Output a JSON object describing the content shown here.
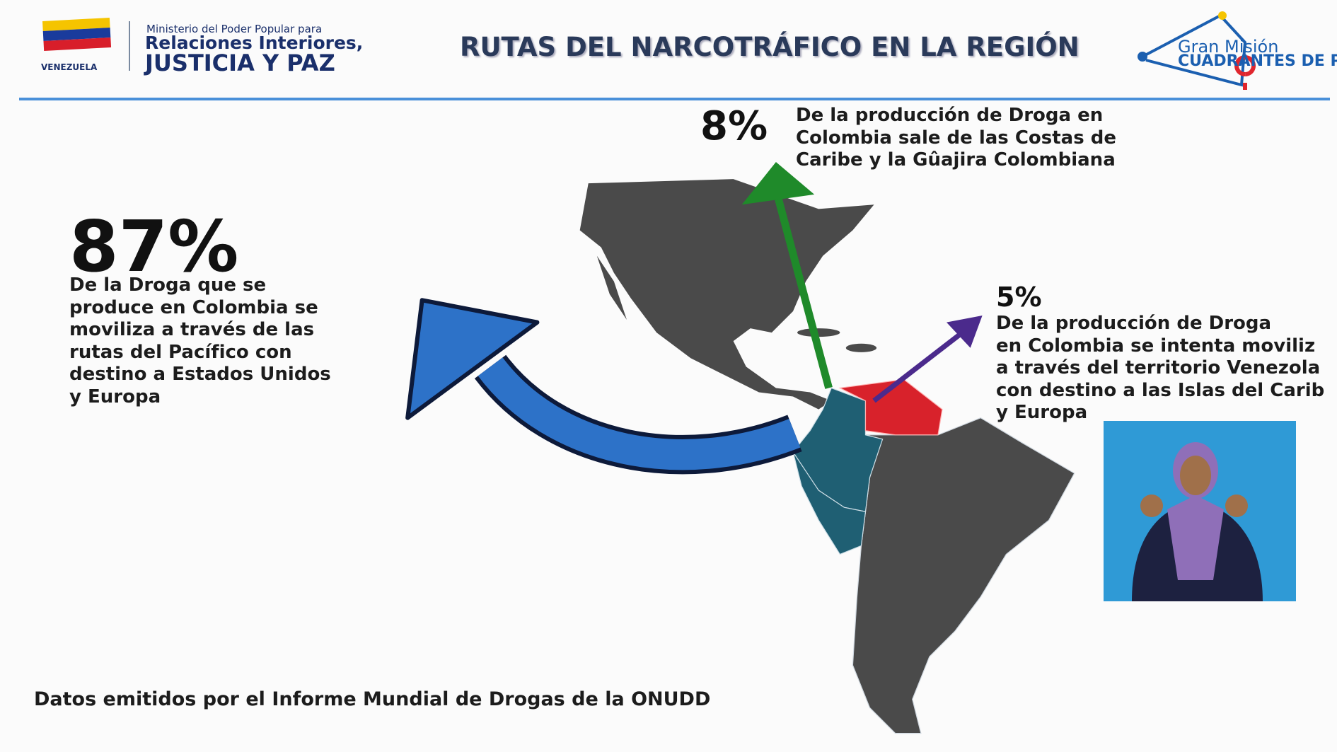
{
  "header": {
    "ministry": {
      "line1": "Ministerio del Poder Popular para",
      "line2": "Relaciones Interiores,",
      "line3": "JUSTICIA Y PAZ",
      "country": "VENEZUELA"
    },
    "title": "RUTAS DEL NARCOTRÁFICO EN LA REGIÓN",
    "logo": {
      "line1": "Gran Misión",
      "line2": "CUADRANTES DE PA"
    }
  },
  "stats": [
    {
      "figure": "87%",
      "lines": [
        "De la Droga que se",
        "produce en Colombia se",
        "moviliza a través de las",
        "rutas del Pacífico con",
        "destino a Estados Unidos",
        "y Europa"
      ]
    },
    {
      "figure": "8%",
      "lines": [
        "De la producción de Droga en",
        "Colombia sale de las Costas de",
        "Caribe y la Gûajira Colombiana"
      ]
    },
    {
      "figure": "5%",
      "lines": [
        "De la producción de Droga",
        "en Colombia se intenta moviliz",
        "a través del territorio Venezola",
        "con destino a las Islas del Carib",
        "y Europa"
      ]
    }
  ],
  "footer": "Datos emitidos por el Informe Mundial de Drogas de la ONUDD"
}
